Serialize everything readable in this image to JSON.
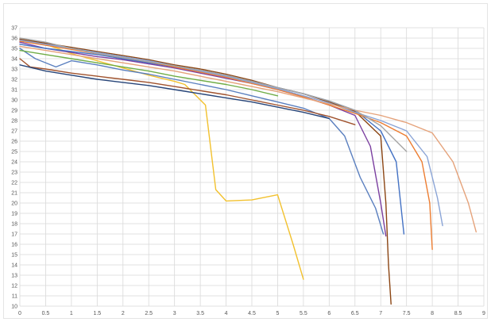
{
  "chart_data": {
    "type": "line",
    "title": "",
    "xlabel": "",
    "ylabel": "",
    "xlim": [
      0,
      9
    ],
    "ylim": [
      10,
      37
    ],
    "grid": true,
    "legend": "none",
    "x_ticks": [
      "0",
      "0.5",
      "1",
      "1.5",
      "2",
      "2.5",
      "3",
      "3.5",
      "4",
      "4.5",
      "5",
      "5.5",
      "6",
      "6.5",
      "7",
      "7.5",
      "8",
      "8.5",
      "9"
    ],
    "y_ticks": [
      "10",
      "11",
      "12",
      "13",
      "14",
      "15",
      "16",
      "17",
      "18",
      "19",
      "20",
      "21",
      "22",
      "23",
      "24",
      "25",
      "26",
      "27",
      "28",
      "29",
      "30",
      "31",
      "32",
      "33",
      "34",
      "35",
      "36",
      "37"
    ],
    "series": [
      {
        "color": "#f2c12e",
        "x": [
          0,
          0.5,
          1,
          1.5,
          2,
          2.5,
          3.0,
          3.2,
          3.6,
          3.8,
          4.0,
          4.5,
          5.0,
          5.3,
          5.5
        ],
        "y": [
          35.8,
          35.4,
          34.5,
          33.8,
          33.1,
          32.4,
          31.8,
          31.5,
          29.5,
          21.3,
          20.2,
          20.3,
          20.8,
          16.0,
          12.6
        ]
      },
      {
        "color": "#8b4513",
        "x": [
          0,
          0.5,
          1,
          1.5,
          2,
          2.5,
          3,
          3.5,
          4,
          4.5,
          5,
          5.5,
          6,
          6.5,
          7.0,
          7.1,
          7.15,
          7.2
        ],
        "y": [
          35.9,
          35.5,
          35.1,
          34.7,
          34.3,
          33.9,
          33.4,
          33.0,
          32.5,
          31.9,
          31.2,
          30.6,
          29.8,
          28.9,
          26.5,
          20.0,
          14.0,
          10.2
        ]
      },
      {
        "color": "#7b3fa0",
        "x": [
          0,
          0.5,
          1,
          1.5,
          2,
          2.5,
          3,
          3.5,
          4,
          4.5,
          5,
          5.5,
          6,
          6.5,
          6.8,
          7.0,
          7.1
        ],
        "y": [
          35.6,
          35.0,
          34.6,
          34.2,
          33.9,
          33.5,
          33.1,
          32.6,
          32.1,
          31.6,
          31.0,
          30.3,
          29.5,
          28.5,
          25.5,
          20.0,
          16.8
        ]
      },
      {
        "color": "#5a7fbf",
        "x": [
          0,
          0.3,
          0.7,
          1,
          1.5,
          2,
          2.5,
          3,
          3.5,
          4,
          4.5,
          5,
          5.5,
          6,
          6.3,
          6.6,
          6.9,
          7.05
        ],
        "y": [
          35.0,
          34.0,
          33.2,
          33.8,
          33.4,
          32.9,
          32.5,
          32.0,
          31.5,
          31.0,
          30.4,
          29.8,
          29.2,
          28.2,
          26.5,
          22.5,
          19.5,
          17.0
        ]
      },
      {
        "color": "#4472c4",
        "x": [
          0,
          0.5,
          1,
          1.5,
          2,
          2.5,
          3,
          3.5,
          4,
          4.5,
          5,
          5.5,
          6,
          6.5,
          7.0,
          7.3,
          7.45
        ],
        "y": [
          35.4,
          35.0,
          34.7,
          34.4,
          34.0,
          33.6,
          33.2,
          32.8,
          32.3,
          31.8,
          31.2,
          30.6,
          29.9,
          29.0,
          27.0,
          24.0,
          17.0
        ]
      },
      {
        "color": "#ed7d31",
        "x": [
          0,
          0.5,
          1,
          1.5,
          2,
          2.5,
          3,
          3.5,
          4,
          4.5,
          5,
          5.5,
          6,
          6.5,
          7.0,
          7.5,
          7.8,
          7.95,
          8.0
        ],
        "y": [
          35.7,
          35.3,
          34.9,
          34.5,
          34.1,
          33.7,
          33.2,
          32.7,
          32.2,
          31.6,
          31.0,
          30.3,
          29.5,
          28.7,
          27.8,
          26.5,
          24.0,
          20.0,
          15.5
        ]
      },
      {
        "color": "#8aa4d6",
        "x": [
          0,
          0.5,
          1,
          1.5,
          2,
          2.5,
          3,
          3.5,
          4,
          4.5,
          5,
          5.5,
          6,
          6.5,
          7.0,
          7.5,
          7.9,
          8.1,
          8.2
        ],
        "y": [
          35.8,
          35.4,
          35.0,
          34.6,
          34.2,
          33.8,
          33.3,
          32.8,
          32.3,
          31.7,
          31.1,
          30.4,
          29.7,
          28.8,
          28.0,
          27.0,
          24.5,
          20.5,
          17.8
        ]
      },
      {
        "color": "#e5a27a",
        "x": [
          0,
          0.5,
          1,
          1.5,
          2,
          2.5,
          3,
          3.5,
          4,
          4.5,
          5,
          5.5,
          6,
          6.5,
          7.0,
          7.5,
          8.0,
          8.4,
          8.7,
          8.85
        ],
        "y": [
          35.2,
          34.8,
          34.4,
          34.0,
          33.6,
          33.2,
          32.8,
          32.3,
          31.8,
          31.3,
          30.8,
          30.2,
          29.6,
          29.0,
          28.5,
          27.8,
          26.8,
          24.0,
          20.0,
          17.2
        ]
      },
      {
        "color": "#a5a5a5",
        "x": [
          0,
          0.5,
          1,
          1.5,
          2,
          2.5,
          3,
          3.5,
          4,
          4.5,
          5,
          5.5,
          6,
          6.5,
          7.0,
          7.5
        ],
        "y": [
          36.0,
          35.6,
          35.0,
          34.5,
          34.1,
          33.7,
          33.3,
          32.9,
          32.4,
          31.8,
          31.2,
          30.6,
          29.9,
          29.0,
          27.5,
          25.0
        ]
      },
      {
        "color": "#70ad47",
        "x": [
          0,
          0.5,
          1,
          1.5,
          2,
          2.5,
          3,
          3.5,
          4,
          4.5,
          5
        ],
        "y": [
          34.8,
          34.4,
          34.0,
          33.6,
          33.2,
          32.8,
          32.3,
          31.9,
          31.5,
          31.0,
          30.4
        ]
      },
      {
        "color": "#a0522d",
        "x": [
          0,
          0.2,
          0.5,
          1,
          1.5,
          2,
          2.5,
          3,
          3.5,
          4,
          4.5,
          5,
          5.5,
          6,
          6.5
        ],
        "y": [
          34.0,
          33.2,
          33.0,
          32.6,
          32.3,
          32.0,
          31.7,
          31.3,
          30.9,
          30.5,
          30.0,
          29.5,
          29.0,
          28.4,
          27.6
        ]
      },
      {
        "color": "#264478",
        "x": [
          0,
          0.5,
          1,
          1.5,
          2,
          2.5,
          3,
          3.5,
          4,
          4.5,
          5,
          5.5,
          6
        ],
        "y": [
          33.4,
          32.8,
          32.4,
          32.0,
          31.7,
          31.4,
          31.0,
          30.6,
          30.2,
          29.8,
          29.3,
          28.8,
          28.2
        ]
      }
    ]
  }
}
